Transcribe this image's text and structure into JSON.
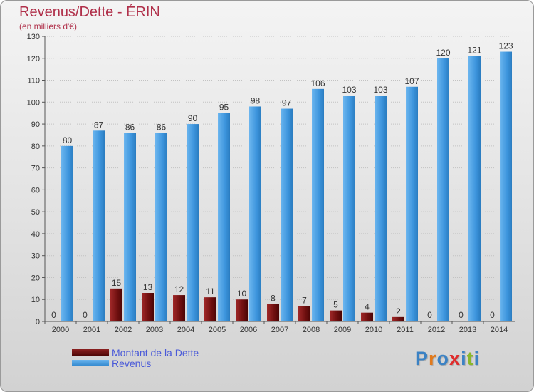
{
  "header": {
    "title": "Revenus/Dette - ÉRIN",
    "subtitle": "(en milliers d'€)"
  },
  "legend": {
    "debt_label": "Montant de la Dette",
    "revenue_label": "Revenus"
  },
  "logo": {
    "text": "Proxiti",
    "letter_colors": [
      "#3b82c4",
      "#e27a1c",
      "#3b82c4",
      "#e02c2c",
      "#3b82c4",
      "#8ab82a",
      "#3b82c4"
    ]
  },
  "colors": {
    "debt": "#6e0f0f",
    "revenue": "#3d95dd",
    "title": "#b0304a",
    "legend_text": "#4a5ad8",
    "axis_text": "#333333"
  },
  "chart_data": {
    "type": "bar",
    "categories": [
      "2000",
      "2001",
      "2002",
      "2003",
      "2004",
      "2005",
      "2006",
      "2007",
      "2008",
      "2009",
      "2010",
      "2011",
      "2012",
      "2013",
      "2014"
    ],
    "series": [
      {
        "name": "Montant de la Dette",
        "values": [
          0,
          0,
          15,
          13,
          12,
          11,
          10,
          8,
          7,
          5,
          4,
          2,
          0,
          0,
          0
        ]
      },
      {
        "name": "Revenus",
        "values": [
          80,
          87,
          86,
          86,
          90,
          95,
          98,
          97,
          106,
          103,
          103,
          107,
          120,
          121,
          123
        ]
      }
    ],
    "ylim": [
      0,
      130
    ],
    "yticks": [
      0,
      10,
      20,
      30,
      40,
      50,
      60,
      70,
      80,
      90,
      100,
      110,
      120,
      130
    ],
    "grid": true,
    "legend_position": "bottom-left"
  }
}
